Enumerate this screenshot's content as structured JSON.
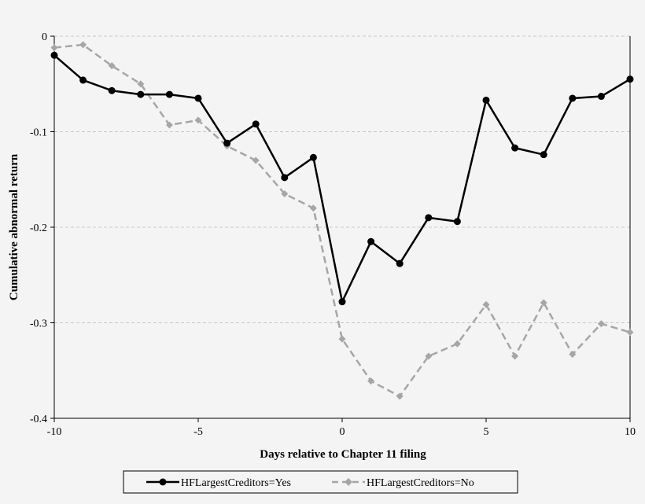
{
  "chart_data": {
    "type": "line",
    "xlabel": "Days relative to Chapter 11 filing",
    "ylabel": "Cumulative abnormal return",
    "xlim": [
      -10,
      10
    ],
    "ylim": [
      -0.4,
      0
    ],
    "x_ticks": [
      -10,
      -5,
      0,
      5,
      10
    ],
    "x_tick_labels": [
      "-10",
      "-5",
      "0",
      "5",
      "10"
    ],
    "y_ticks": [
      0,
      -0.1,
      -0.2,
      -0.3,
      -0.4
    ],
    "y_tick_labels": [
      "0",
      "-0.1",
      "-0.2",
      "-0.3",
      "-0.4"
    ],
    "grid": "horizontal dashed",
    "legend_position": "bottom",
    "x": [
      -10,
      -9,
      -8,
      -7,
      -6,
      -5,
      -4,
      -3,
      -2,
      -1,
      0,
      1,
      2,
      3,
      4,
      5,
      6,
      7,
      8,
      9,
      10
    ],
    "series": [
      {
        "name": "HFLargestCreditors=Yes",
        "color": "#000000",
        "style": "solid",
        "marker": "circle",
        "values": [
          -0.02,
          -0.046,
          -0.057,
          -0.061,
          -0.061,
          -0.065,
          -0.112,
          -0.092,
          -0.148,
          -0.127,
          -0.278,
          -0.215,
          -0.238,
          -0.19,
          -0.194,
          -0.067,
          -0.117,
          -0.124,
          -0.065,
          -0.063,
          -0.045
        ]
      },
      {
        "name": "HFLargestCreditors=No",
        "color": "#a6a6a6",
        "style": "dashed",
        "marker": "diamond",
        "values": [
          -0.012,
          -0.009,
          -0.031,
          -0.05,
          -0.093,
          -0.088,
          -0.115,
          -0.13,
          -0.165,
          -0.18,
          -0.317,
          -0.361,
          -0.377,
          -0.335,
          -0.322,
          -0.281,
          -0.335,
          -0.279,
          -0.333,
          -0.301,
          -0.31
        ]
      }
    ]
  }
}
